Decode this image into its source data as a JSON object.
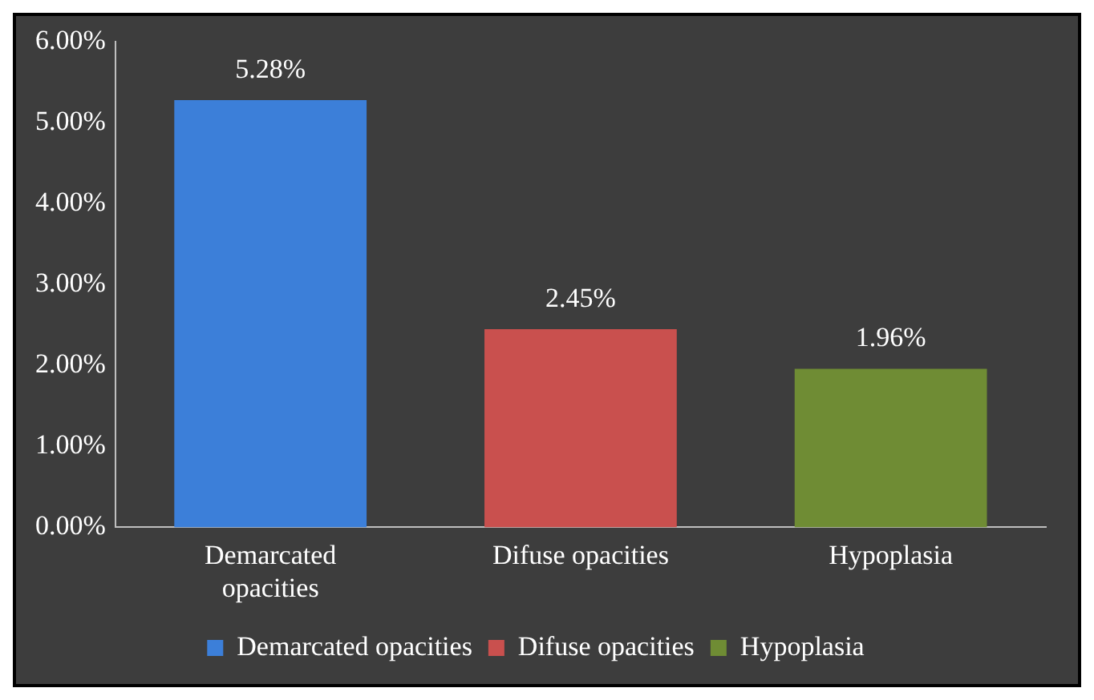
{
  "chart_data": {
    "type": "bar",
    "categories": [
      "Demarcated opacities",
      "Difuse opacities",
      "Hypoplasia"
    ],
    "series": [
      {
        "name": "Demarcated opacities",
        "color": "#3c7fd9",
        "values": [
          5.28,
          null,
          null
        ],
        "value_labels": [
          "5.28%",
          null,
          null
        ]
      },
      {
        "name": "Difuse opacities",
        "color": "#c9504e",
        "values": [
          null,
          2.45,
          null
        ],
        "value_labels": [
          null,
          "2.45%",
          null
        ]
      },
      {
        "name": "Hypoplasia",
        "color": "#6f8c34",
        "values": [
          null,
          null,
          1.96
        ],
        "value_labels": [
          null,
          null,
          "1.96%"
        ]
      }
    ],
    "ylim": [
      0,
      6
    ],
    "yticks": [
      {
        "value": 0,
        "label": "0.00%"
      },
      {
        "value": 1,
        "label": "1.00%"
      },
      {
        "value": 2,
        "label": "2.00%"
      },
      {
        "value": 3,
        "label": "3.00%"
      },
      {
        "value": 4,
        "label": "4.00%"
      },
      {
        "value": 5,
        "label": "5.00%"
      },
      {
        "value": 6,
        "label": "6.00%"
      }
    ],
    "legend": "bottom"
  }
}
